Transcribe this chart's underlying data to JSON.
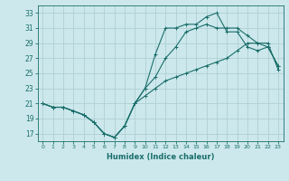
{
  "xlabel": "Humidex (Indice chaleur)",
  "bg_color": "#cce8ec",
  "grid_color": "#b0d0d4",
  "line_color": "#1a6e6a",
  "xlim": [
    -0.5,
    23.5
  ],
  "ylim": [
    16,
    34
  ],
  "xticks": [
    0,
    1,
    2,
    3,
    4,
    5,
    6,
    7,
    8,
    9,
    10,
    11,
    12,
    13,
    14,
    15,
    16,
    17,
    18,
    19,
    20,
    21,
    22,
    23
  ],
  "yticks": [
    17,
    19,
    21,
    23,
    25,
    27,
    29,
    31,
    33
  ],
  "line1_x": [
    0,
    1,
    2,
    3,
    4,
    5,
    6,
    7,
    8,
    9,
    10,
    11,
    12,
    13,
    14,
    15,
    16,
    17,
    18,
    19,
    20,
    21,
    22,
    23
  ],
  "line1_y": [
    21,
    20.5,
    20.5,
    20,
    19.5,
    18.5,
    17,
    16.5,
    18,
    21,
    22,
    23,
    24,
    24.5,
    25,
    25.5,
    26,
    26.5,
    27,
    28,
    29,
    29,
    29,
    25.5
  ],
  "line2_x": [
    0,
    1,
    2,
    3,
    4,
    5,
    6,
    7,
    8,
    9,
    10,
    11,
    12,
    13,
    14,
    15,
    16,
    17,
    18,
    19,
    20,
    21,
    22,
    23
  ],
  "line2_y": [
    21,
    20.5,
    20.5,
    20,
    19.5,
    18.5,
    17,
    16.5,
    18,
    21,
    23,
    24.5,
    27,
    28.5,
    30.5,
    31,
    31.5,
    31,
    31,
    31,
    30,
    29,
    28.5,
    26
  ],
  "line3_x": [
    0,
    1,
    2,
    3,
    4,
    5,
    6,
    7,
    8,
    9,
    10,
    11,
    12,
    13,
    14,
    15,
    16,
    17,
    18,
    19,
    20,
    21,
    22,
    23
  ],
  "line3_y": [
    21,
    20.5,
    20.5,
    20,
    19.5,
    18.5,
    17,
    16.5,
    18,
    21,
    23,
    27.5,
    31,
    31,
    31.5,
    31.5,
    32.5,
    33,
    30.5,
    30.5,
    28.5,
    28,
    28.5,
    26
  ]
}
